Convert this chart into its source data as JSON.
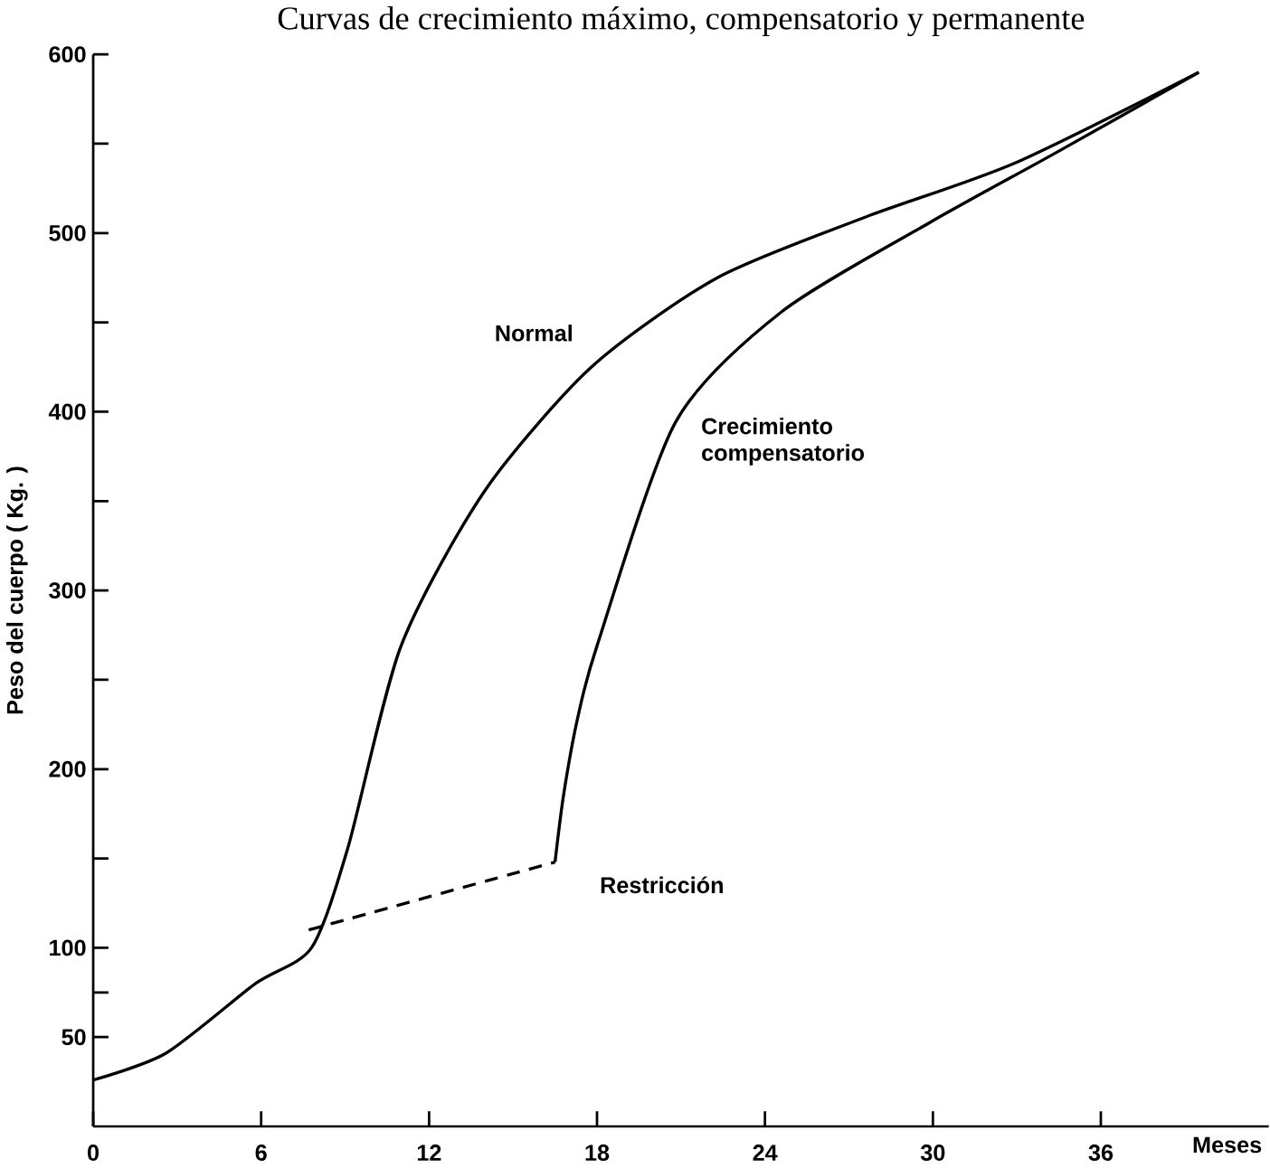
{
  "chart_data": {
    "type": "line",
    "title": "Curvas de crecimiento máximo, compensatorio y permanente",
    "xlabel": "Meses",
    "ylabel": "Peso del cuerpo ( Kg. )",
    "xlim": [
      0,
      42
    ],
    "xticks": [
      0,
      6,
      12,
      18,
      24,
      30,
      36
    ],
    "ylim": [
      0,
      600
    ],
    "yticks": [
      {
        "value": 50,
        "label": "50"
      },
      {
        "value": 75,
        "label": null
      },
      100,
      {
        "value": 150,
        "label": null
      },
      200,
      {
        "value": 250,
        "label": null
      },
      300,
      {
        "value": 350,
        "label": null
      },
      400,
      {
        "value": 450,
        "label": null
      },
      500,
      {
        "value": 550,
        "label": null
      },
      600
    ],
    "grid": false,
    "legend": false,
    "marker": "none",
    "series": [
      {
        "name": "Normal",
        "color": "#000000",
        "line_style": "solid",
        "x": [
          0,
          2.6,
          5.8,
          7.8,
          9.1,
          11,
          14,
          17.8,
          22.3,
          27.6,
          32.9,
          39.5
        ],
        "values": [
          26,
          41,
          80,
          100,
          156,
          269,
          356,
          425,
          475,
          509,
          539,
          590
        ]
      },
      {
        "name": "Restricción",
        "color": "#000000",
        "line_style": "dashed",
        "x": [
          7.7,
          16.5
        ],
        "values": [
          110,
          148
        ]
      },
      {
        "name": "Crecimiento compensatorio",
        "color": "#000000",
        "line_style": "solid",
        "x": [
          16.5,
          16.8,
          17.3,
          18,
          20.8,
          24.6,
          29.9,
          34.4,
          39.5
        ],
        "values": [
          148,
          185,
          228,
          269,
          394,
          456,
          506,
          545,
          590
        ]
      }
    ]
  }
}
